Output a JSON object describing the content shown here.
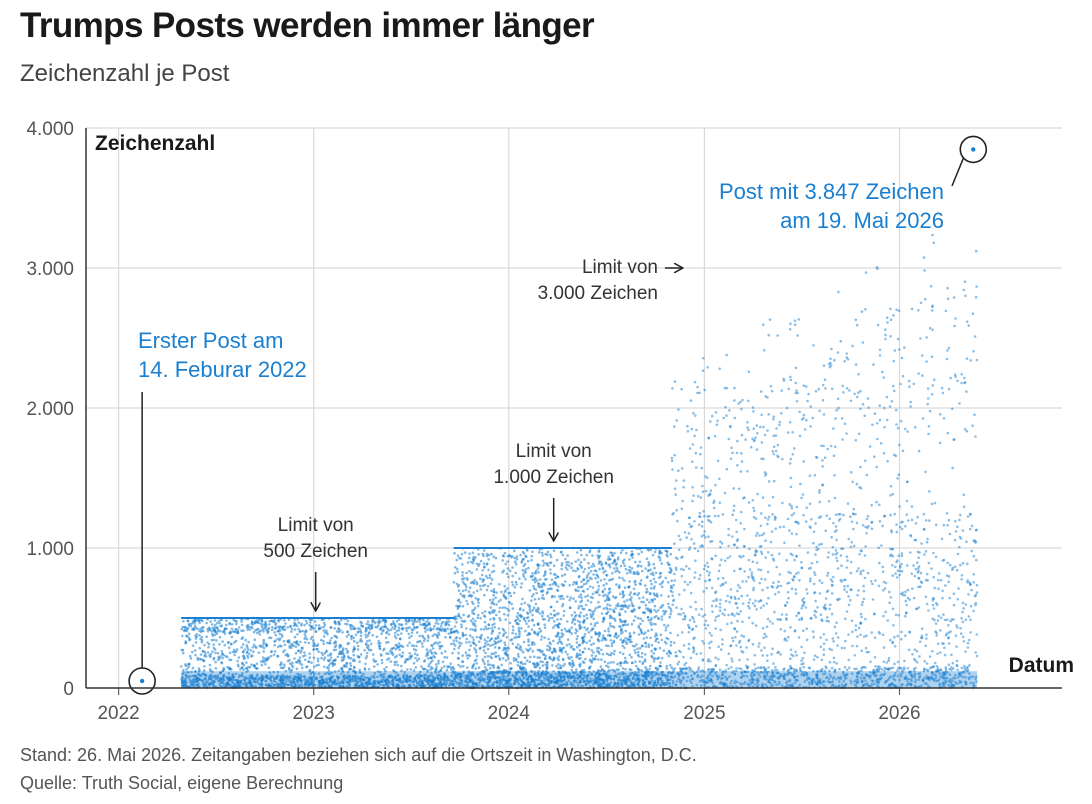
{
  "header": {
    "title": "Trumps Posts werden immer länger",
    "subtitle": "Zeichenzahl je Post"
  },
  "footer": {
    "note": "Stand: 26. Mai 2026. Zeitangaben beziehen sich auf die Ortszeit in Washington, D.C.",
    "source": "Quelle: Truth Social, eigene Berechnung"
  },
  "colors": {
    "accent": "#1a7fd0",
    "text": "#1a1a1a",
    "grid": "#d9d9d9"
  },
  "chart_data": {
    "type": "scatter",
    "ylabel": "Zeichenzahl",
    "xlabel": "Datum",
    "ylim": [
      0,
      4000
    ],
    "xlim": [
      "2021-11-01",
      "2026-11-01"
    ],
    "grid": true,
    "y_ticks": [
      {
        "value": 0,
        "label": "0"
      },
      {
        "value": 1000,
        "label": "1.000"
      },
      {
        "value": 2000,
        "label": "2.000"
      },
      {
        "value": 3000,
        "label": "3.000"
      },
      {
        "value": 4000,
        "label": "4.000"
      }
    ],
    "x_ticks": [
      {
        "value": "2022-01-01",
        "label": "2022"
      },
      {
        "value": "2023-01-01",
        "label": "2023"
      },
      {
        "value": "2024-01-01",
        "label": "2024"
      },
      {
        "value": "2025-01-01",
        "label": "2025"
      },
      {
        "value": "2026-01-01",
        "label": "2026"
      }
    ],
    "character_limits": [
      {
        "from": "2022-04-28",
        "to": "2023-09-20",
        "limit": 500
      },
      {
        "from": "2023-09-20",
        "to": "2024-11-01",
        "limit": 1000
      },
      {
        "from": "2024-11-01",
        "to": "2026-05-26",
        "limit": 3000
      }
    ],
    "highlighted_points": [
      {
        "date": "2022-02-14",
        "chars": 50
      },
      {
        "date": "2026-05-19",
        "chars": 3847
      }
    ],
    "annotations": [
      {
        "lines": [
          "Limit von",
          "500 Zeichen"
        ],
        "target": {
          "date": "2023-01-01",
          "chars": 500
        }
      },
      {
        "lines": [
          "Limit von",
          "1.000 Zeichen"
        ],
        "target": {
          "date": "2024-03-25",
          "chars": 1000
        }
      },
      {
        "lines": [
          "Limit von",
          "3.000 Zeichen"
        ],
        "target": {
          "date": "2024-11-01",
          "chars": 3000
        }
      },
      {
        "lines": [
          "Erster Post am",
          "14. Feburar 2022"
        ],
        "target": {
          "date": "2022-02-14",
          "chars": 50
        }
      },
      {
        "lines": [
          "Post mit 3.847 Zeichen",
          "am 19. Mai 2026"
        ],
        "target": {
          "date": "2026-05-19",
          "chars": 3847
        }
      }
    ]
  }
}
